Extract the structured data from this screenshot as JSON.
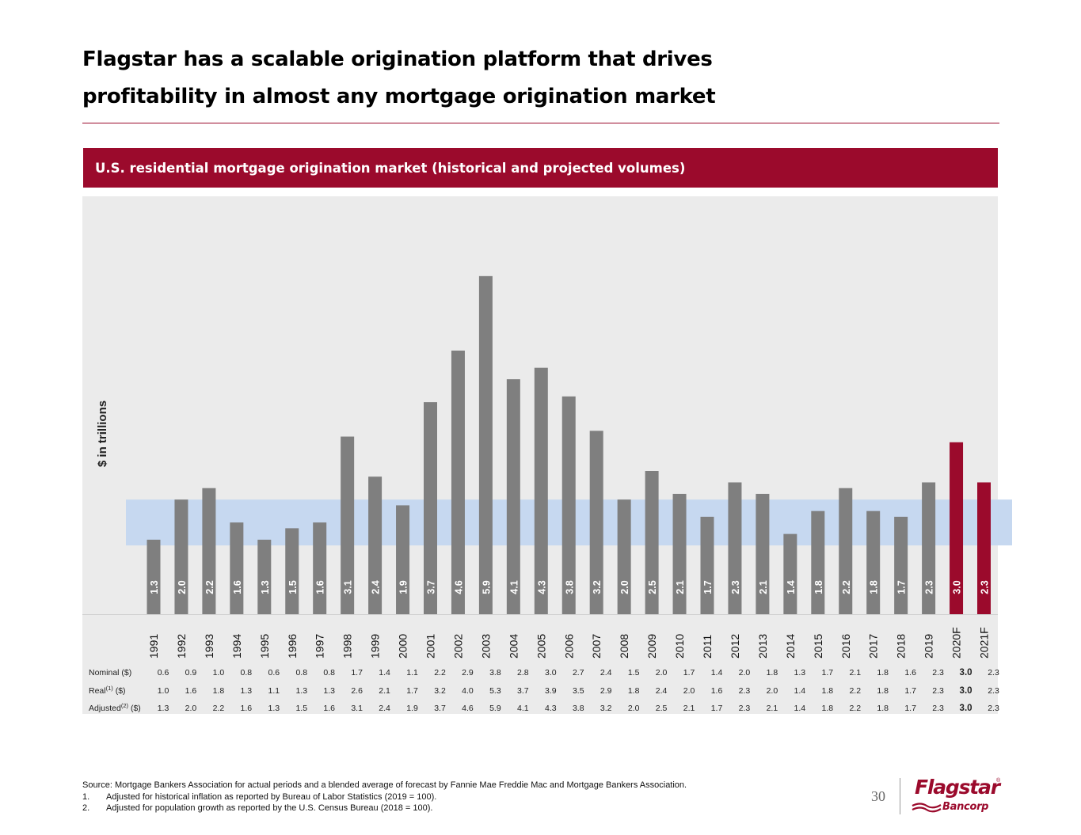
{
  "title_line1": "Flagstar has a scalable origination platform that drives",
  "title_line2": "profitability in almost any mortgage origination market",
  "banner": "U.S. residential mortgage origination market (historical and projected volumes)",
  "chart_data": {
    "type": "bar",
    "ylabel": "$ in trillions",
    "categories": [
      "1991",
      "1992",
      "1993",
      "1994",
      "1995",
      "1996",
      "1997",
      "1998",
      "1999",
      "2000",
      "2001",
      "2002",
      "2003",
      "2004",
      "2005",
      "2006",
      "2007",
      "2008",
      "2009",
      "2010",
      "2011",
      "2012",
      "2013",
      "2014",
      "2015",
      "2016",
      "2017",
      "2018",
      "2019",
      "2020F",
      "2021F"
    ],
    "values": [
      1.3,
      2.0,
      2.2,
      1.6,
      1.3,
      1.5,
      1.6,
      3.1,
      2.4,
      1.9,
      3.7,
      4.6,
      5.9,
      4.1,
      4.3,
      3.8,
      3.2,
      2.0,
      2.5,
      2.1,
      1.7,
      2.3,
      2.1,
      1.4,
      1.8,
      2.2,
      1.8,
      1.7,
      2.3,
      3.0,
      2.3
    ],
    "value_labels": [
      "1.3",
      "2.0",
      "2.2",
      "1.6",
      "1.3",
      "1.5",
      "1.6",
      "3.1",
      "2.4",
      "1.9",
      "3.7",
      "4.6",
      "5.9",
      "4.1",
      "4.3",
      "3.8",
      "3.2",
      "2.0",
      "2.5",
      "2.1",
      "1.7",
      "2.3",
      "2.1",
      "1.4",
      "1.8",
      "2.2",
      "1.8",
      "1.7",
      "2.3",
      "3.0",
      "2.3"
    ],
    "projected_categories": [
      "2020F",
      "2021F"
    ],
    "band": [
      1.2,
      2.0
    ],
    "ylim": [
      0,
      6.2
    ],
    "colors": {
      "historical": "#7f7f7f",
      "projected": "#9b0a2c",
      "band": "#c6d8f0",
      "panel": "#ebebeb"
    },
    "table": {
      "rows": [
        {
          "label": "Nominal ($)",
          "sup": "",
          "suffix": "",
          "values": [
            "0.6",
            "0.9",
            "1.0",
            "0.8",
            "0.6",
            "0.8",
            "0.8",
            "1.7",
            "1.4",
            "1.1",
            "2.2",
            "2.9",
            "3.8",
            "2.8",
            "3.0",
            "2.7",
            "2.4",
            "1.5",
            "2.0",
            "1.7",
            "1.4",
            "2.0",
            "1.8",
            "1.3",
            "1.7",
            "2.1",
            "1.8",
            "1.6",
            "2.3",
            "3.0",
            "2.3"
          ]
        },
        {
          "label": "Real",
          "sup": "(1)",
          "suffix": " ($)",
          "values": [
            "1.0",
            "1.6",
            "1.8",
            "1.3",
            "1.1",
            "1.3",
            "1.3",
            "2.6",
            "2.1",
            "1.7",
            "3.2",
            "4.0",
            "5.3",
            "3.7",
            "3.9",
            "3.5",
            "2.9",
            "1.8",
            "2.4",
            "2.0",
            "1.6",
            "2.3",
            "2.0",
            "1.4",
            "1.8",
            "2.2",
            "1.8",
            "1.7",
            "2.3",
            "3.0",
            "2.3"
          ]
        },
        {
          "label": "Adjusted",
          "sup": "(2)",
          "suffix": " ($)",
          "values": [
            "1.3",
            "2.0",
            "2.2",
            "1.6",
            "1.3",
            "1.5",
            "1.6",
            "3.1",
            "2.4",
            "1.9",
            "3.7",
            "4.6",
            "5.9",
            "4.1",
            "4.3",
            "3.8",
            "3.2",
            "2.0",
            "2.5",
            "2.1",
            "1.7",
            "2.3",
            "2.1",
            "1.4",
            "1.8",
            "2.2",
            "1.8",
            "1.7",
            "2.3",
            "3.0",
            "2.3"
          ]
        }
      ]
    }
  },
  "footnotes": {
    "source": "Source: Mortgage Bankers Association for actual periods and a blended average of forecast by Fannie Mae Freddie Mac and Mortgage Bankers Association.",
    "notes": [
      {
        "num": "1.",
        "text": "Adjusted for historical inflation as reported by Bureau of Labor Statistics (2019 = 100)."
      },
      {
        "num": "2.",
        "text": "Adjusted for population growth as reported by the U.S. Census Bureau (2018 = 100)."
      }
    ]
  },
  "page_number": "30",
  "logo": {
    "name": "Flagstar",
    "sub": "Bancorp",
    "mark": "®"
  }
}
